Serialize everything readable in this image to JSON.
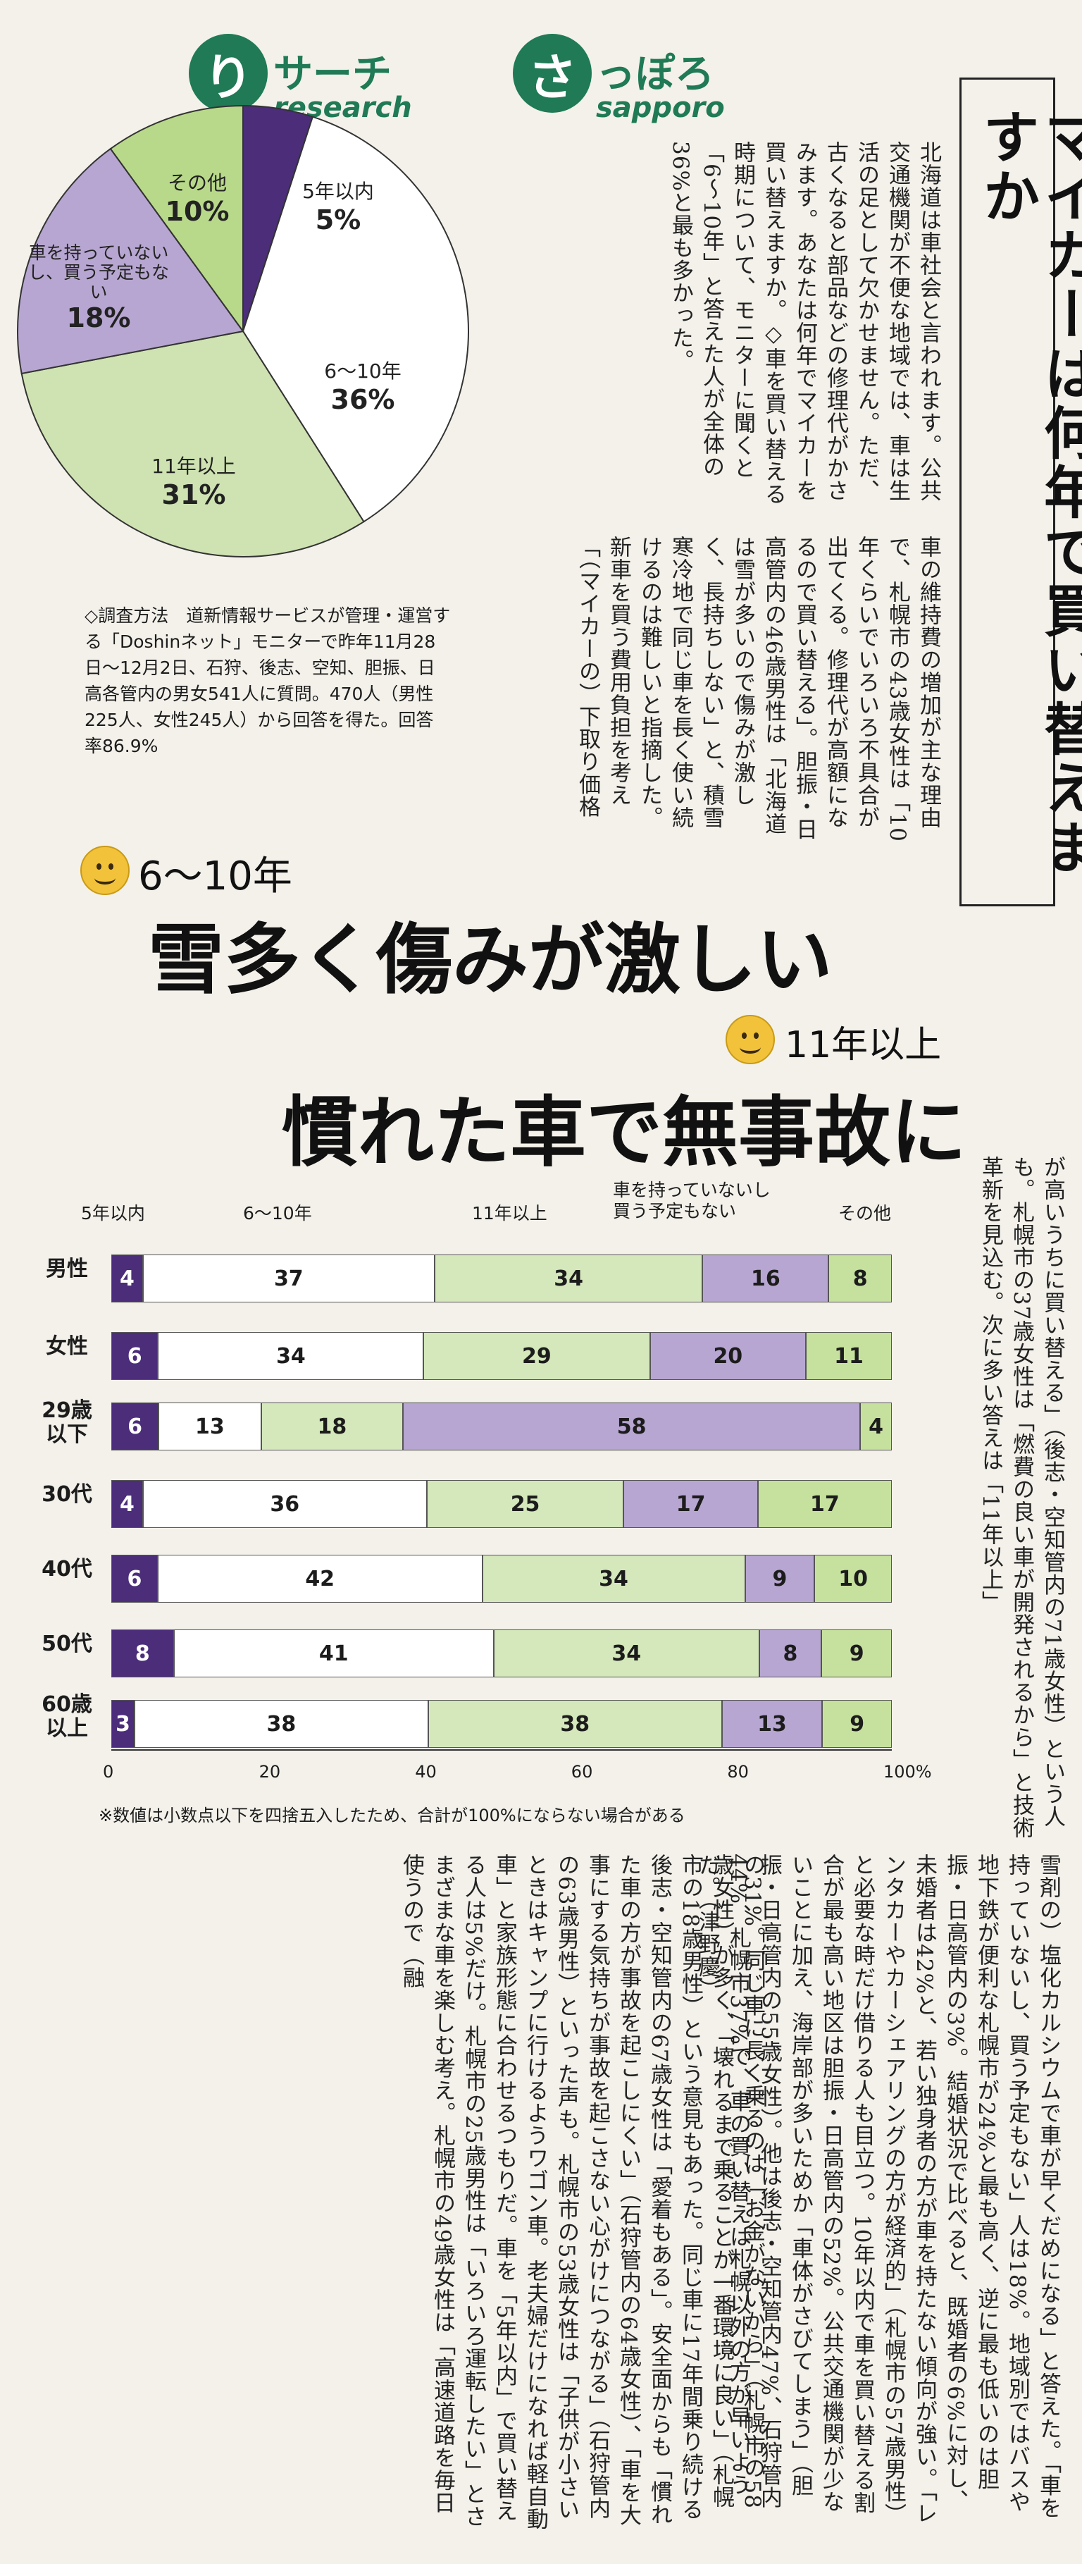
{
  "header": {
    "logo_ri": "り",
    "logo_research_kana": "サーチ",
    "logo_sa": "さ",
    "logo_sapporo_kana": "っぽろ",
    "logo_research_en": "research",
    "logo_sapporo_en": "sapporo",
    "title": "マイカーは何年で買い替えますか"
  },
  "intro": {
    "body": "北海道は車社会と言われます。公共交通機関が不便な地域では、車は生活の足として欠かせません。ただ、古くなると部品などの修理代がかさみます。あなたは何年でマイカーを買い替えますか。◇車を買い替える時期について、モニターに聞くと「6〜10年」と答えた人が全体の36%と最も多かった。"
  },
  "body1": {
    "text": "車の維持費の増加が主な理由で、札幌市の43歳女性は「10年くらいでいろいろ不具合が出てくる。修理代が高額になるので買い替える」。胆振・日高管内の46歳男性は「北海道は雪が多いので傷みが激しく、長持ちしない」と、積雪寒冷地で同じ車を長く使い続けるのは難しいと指摘した。新車を買う費用負担を考え「（マイカーの）下取り価格"
  },
  "body2": {
    "text": "が高いうちに買い替える」（後志・空知管内の71歳女性）という人も。札幌市の37歳女性は「燃費の良い車が開発されるから」と技術革新を見込む。次に多い答えは「11年以上」"
  },
  "body3": {
    "text": "の31%。同じ車に長く乗るのは「お金がないから」（札幌市の58歳女性）が多く、「壊れるまで乗ることが一番環境に良い」（札幌市の18歳男性）という意見もあった。同じ車に17年間乗り続ける後志・空知管内の67歳女性は「愛着もある」。安全面からも「慣れた車の方が事故を起こしにくい」（石狩管内の64歳女性）、「車を大事にする気持ちが事故を起こさない心がけにつながる」（石狩管内の63歳男性）といった声も。札幌市の53歳女性は「子供が小さいときはキャンプに行けるようワゴン車。老夫婦だけになれば軽自動車」と家族形態に合わせるつもりだ。車を「5年以内」で買い替える人は5%だけ。札幌市の25歳男性は「いろいろ運転したい」とさまざまな車を楽しむ考え。札幌市の49歳女性は「高速道路を毎日使うので（融"
  },
  "body4": {
    "text": "雪剤の）塩化カルシウムで車が早くだめになる」と答えた。「車を持っていないし、買う予定もない」人は18%。地域別ではバスや地下鉄が便利な札幌市が24%と最も高く、逆に最も低いのは胆振・日高管内の3%。結婚状況で比べると、既婚者の6%に対し、未婚者は42%と、若い独身者の方が車を持たない傾向が強い。「レンタカーやカーシェアリングの方が経済的」（札幌市の57歳男性）と必要な時だけ借りる人も目立つ。10年以内で車を買い替える割合が最も高い地区は胆振・日高管内の52%。公共交通機関が少ないことに加え、海岸部が多いためか「車体がさびてしまう」（胆振・日高管内の55歳女性）。他は後志・空知管内47%、石狩管内44%、札幌市37%で、車の買い替えは札幌以外の方が早いようだ。（津野慶）"
  },
  "pie": {
    "type": "pie",
    "slices": [
      {
        "label": "5年以内",
        "value": 5,
        "pct": "5%",
        "color": "#4b2d7a"
      },
      {
        "label": "6〜10年",
        "value": 36,
        "pct": "36%",
        "color": "#ffffff"
      },
      {
        "label": "11年以上",
        "value": 31,
        "pct": "31%",
        "color": "#cfe3b2"
      },
      {
        "label": "車を持っていないし、買う予定もない",
        "value": 18,
        "pct": "18%",
        "color": "#b7a6d1"
      },
      {
        "label": "その他",
        "value": 10,
        "pct": "10%",
        "color": "#b9d98a"
      }
    ]
  },
  "method": {
    "text": "◇調査方法　道新情報サービスが管理・運営する「Doshinネット」モニターで昨年11月28日〜12月2日、石狩、後志、空知、胆振、日高各管内の男女541人に質問。470人（男性225人、女性245人）から回答を得た。回答率86.9%"
  },
  "headlines": {
    "h1_sub": "6〜10年",
    "h1": "雪多く傷みが激しい",
    "h2_sub": "11年以上",
    "h2": "慣れた車で無事故に"
  },
  "chart_data": {
    "type": "bar",
    "orientation": "horizontal-stacked",
    "categories": [
      "男性",
      "女性",
      "29歳以下",
      "30代",
      "40代",
      "50代",
      "60歳以上"
    ],
    "series": [
      {
        "name": "5年以内",
        "values": [
          4,
          6,
          6,
          4,
          6,
          8,
          3
        ],
        "color": "#4b2d7a"
      },
      {
        "name": "6〜10年",
        "values": [
          37,
          34,
          13,
          36,
          42,
          41,
          38
        ],
        "color": "#ffffff"
      },
      {
        "name": "11年以上",
        "values": [
          34,
          29,
          18,
          25,
          34,
          34,
          38
        ],
        "color": "#d4e8bb"
      },
      {
        "name": "車を持っていないし買う予定もない",
        "values": [
          16,
          20,
          58,
          17,
          9,
          8,
          13
        ],
        "color": "#b7a6d1"
      },
      {
        "name": "その他",
        "values": [
          8,
          11,
          4,
          17,
          10,
          9,
          9
        ],
        "color": "#c6e19e"
      }
    ],
    "xlim": [
      0,
      100
    ],
    "xticks": [
      "0",
      "20",
      "40",
      "60",
      "80",
      "100%"
    ],
    "note": "※数値は小数点以下を四捨五入したため、合計が100%にならない場合がある"
  },
  "chart_labels": {
    "cat1": "5年以内",
    "cat2": "6〜10年",
    "cat3": "11年以上",
    "cat4a": "車を持っていないし",
    "cat4b": "買う予定もない",
    "cat5": "その他",
    "row3a": "29歳",
    "row3b": "以下",
    "row7a": "60歳",
    "row7b": "以上"
  }
}
